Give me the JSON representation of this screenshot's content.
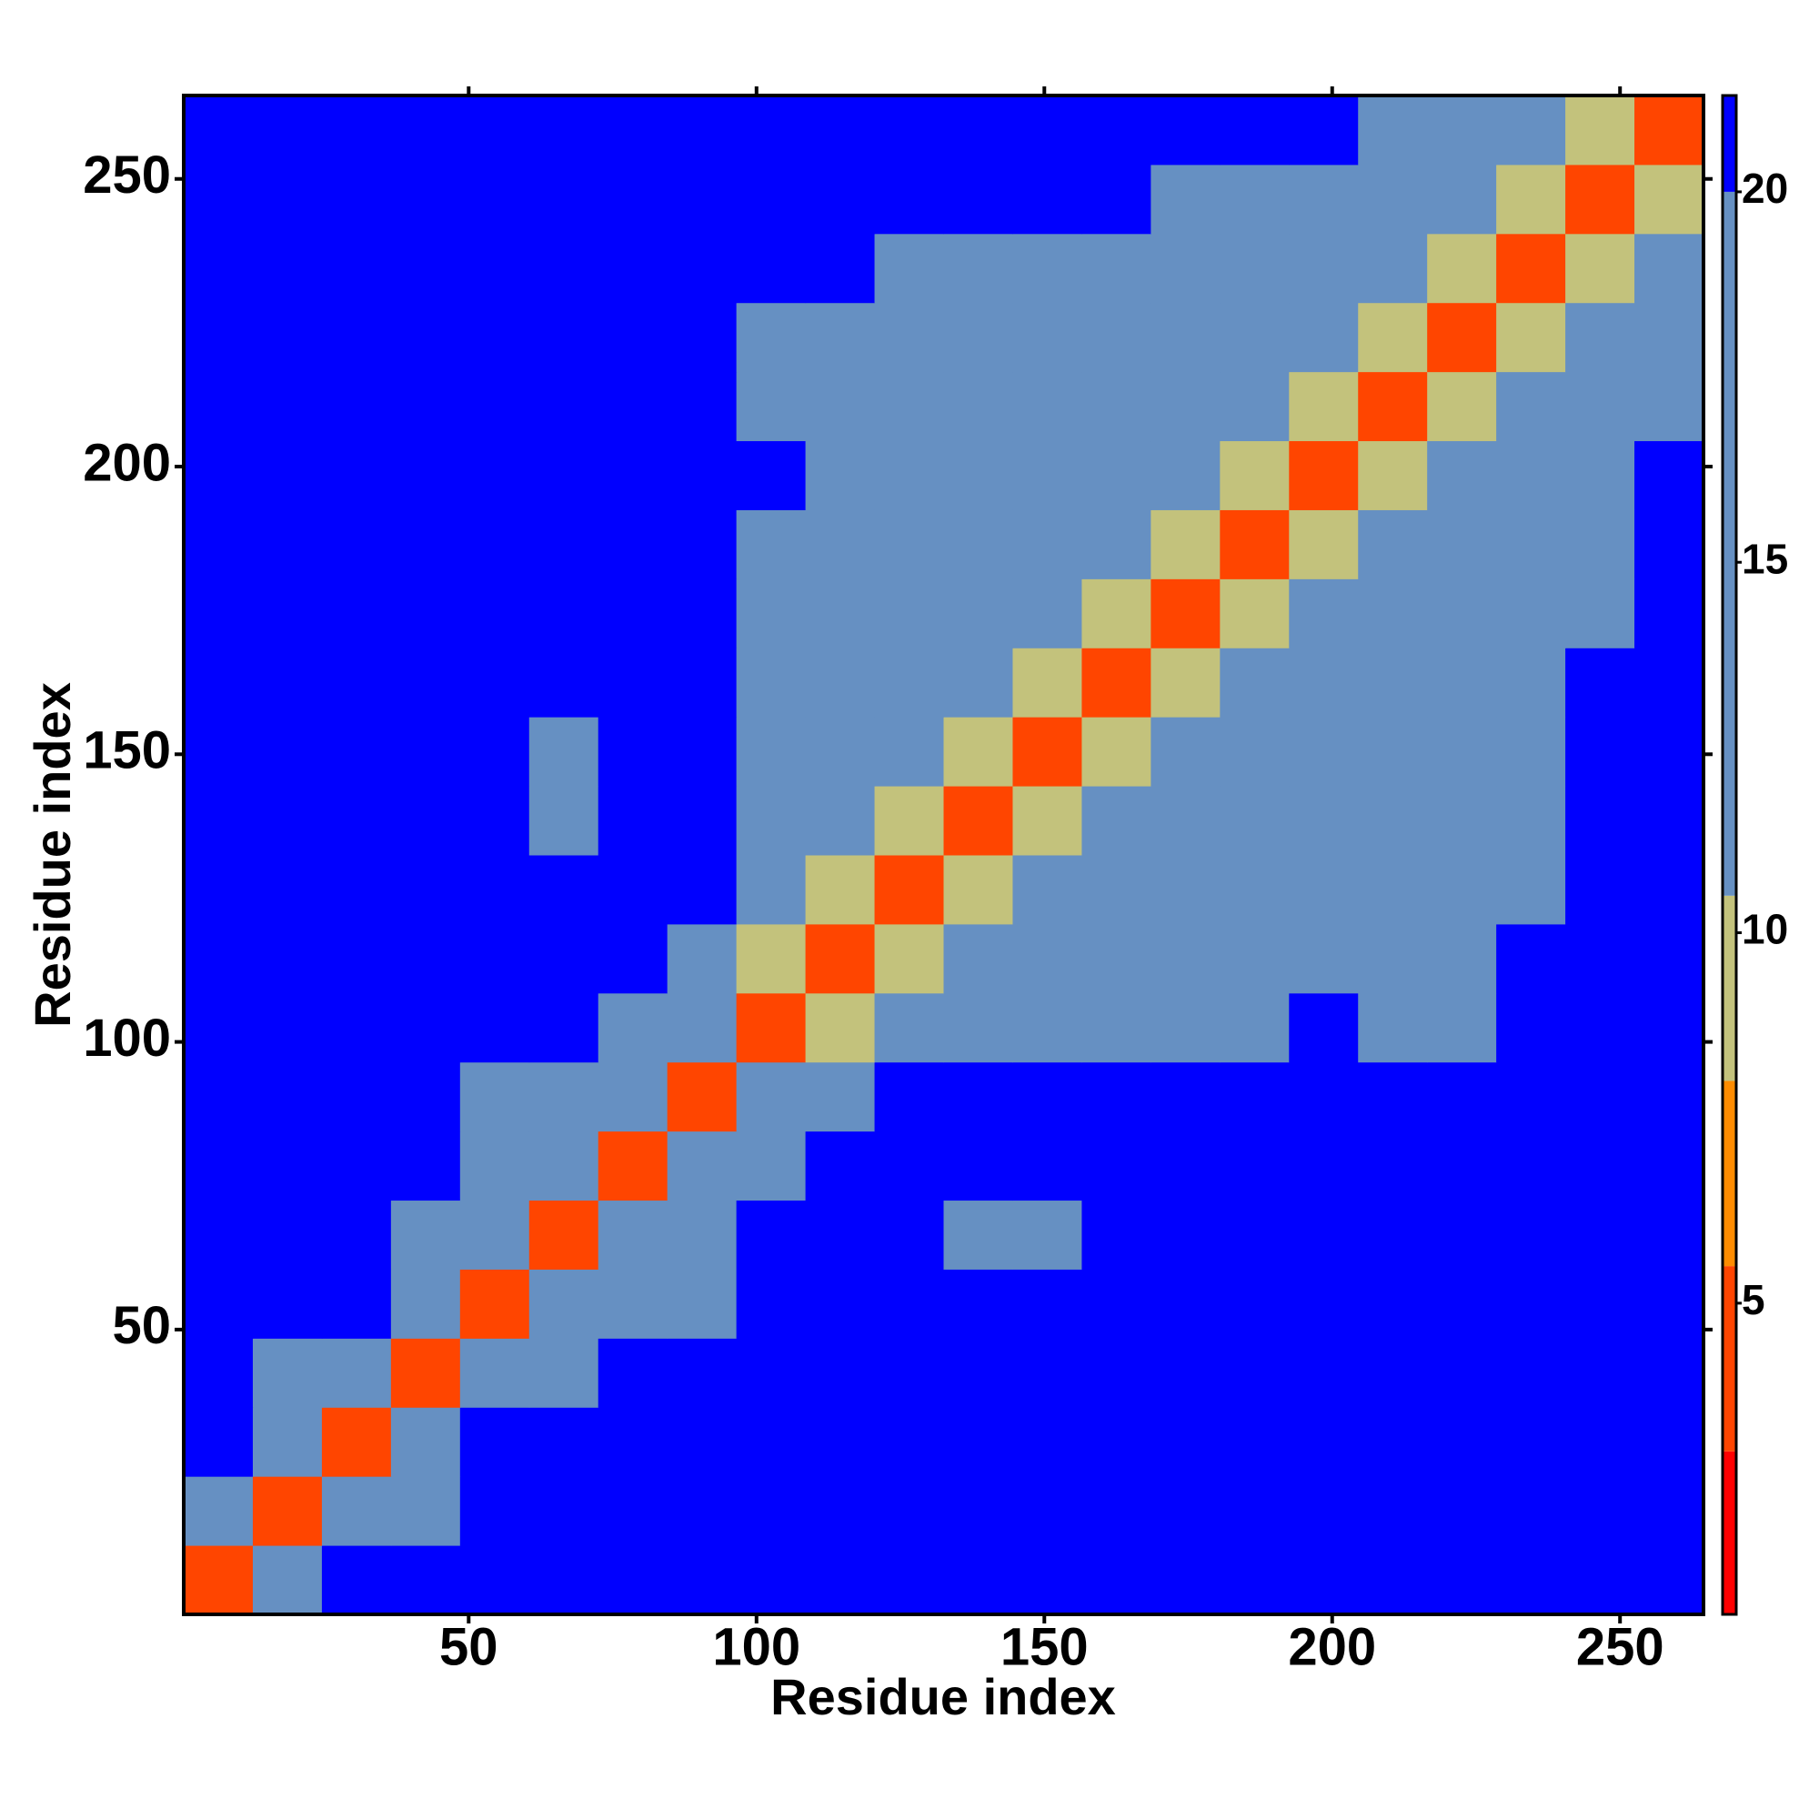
{
  "chart_data": {
    "type": "heatmap",
    "xlabel": "Residue index",
    "ylabel": "Residue index",
    "x": [
      6.5,
      18.5,
      30.5,
      42.5,
      54.5,
      66.5,
      78.5,
      90.5,
      102.5,
      114.5,
      126.5,
      138.5,
      150.5,
      162.5,
      174.5,
      186.5,
      198.5,
      210.5,
      222.5,
      234.5,
      246.5,
      258.5
    ],
    "y": [
      6.5,
      18.5,
      30.5,
      42.5,
      54.5,
      66.5,
      78.5,
      90.5,
      102.5,
      114.5,
      126.5,
      138.5,
      150.5,
      162.5,
      174.5,
      186.5,
      198.5,
      210.5,
      222.5,
      234.5,
      246.5,
      258.5
    ],
    "z": [
      [
        4,
        12,
        21,
        21,
        21,
        21,
        21,
        21,
        21,
        21,
        21,
        21,
        21,
        21,
        21,
        21,
        21,
        21,
        21,
        21,
        21,
        21
      ],
      [
        12,
        4,
        12,
        16,
        21,
        21,
        21,
        21,
        21,
        21,
        21,
        21,
        21,
        21,
        21,
        21,
        21,
        21,
        21,
        21,
        21,
        21
      ],
      [
        21,
        12,
        4,
        12,
        21,
        21,
        21,
        21,
        21,
        21,
        21,
        21,
        21,
        21,
        21,
        21,
        21,
        21,
        21,
        21,
        21,
        21
      ],
      [
        21,
        16,
        12,
        4,
        12,
        16,
        21,
        21,
        21,
        21,
        21,
        21,
        21,
        21,
        21,
        21,
        21,
        21,
        21,
        21,
        21,
        21
      ],
      [
        21,
        21,
        21,
        12,
        4,
        12,
        12,
        11,
        21,
        21,
        21,
        21,
        21,
        21,
        21,
        21,
        21,
        21,
        21,
        21,
        21,
        21
      ],
      [
        21,
        21,
        21,
        16,
        12,
        4,
        12,
        12,
        21,
        21,
        21,
        19,
        19,
        21,
        21,
        21,
        21,
        21,
        21,
        21,
        21,
        21
      ],
      [
        21,
        21,
        21,
        21,
        12,
        12,
        4,
        12,
        16,
        21,
        21,
        21,
        21,
        21,
        21,
        21,
        21,
        21,
        21,
        21,
        21,
        21
      ],
      [
        21,
        21,
        21,
        21,
        11,
        12,
        12,
        4,
        12,
        14,
        21,
        21,
        21,
        21,
        21,
        21,
        21,
        21,
        21,
        21,
        21,
        21
      ],
      [
        21,
        21,
        21,
        21,
        21,
        21,
        16,
        12,
        4,
        10,
        14,
        16,
        16,
        16,
        16,
        18,
        21,
        19,
        19,
        21,
        21,
        21
      ],
      [
        21,
        21,
        21,
        21,
        21,
        21,
        21,
        14,
        10,
        4,
        10,
        14,
        13,
        16,
        16,
        16,
        19,
        19,
        19,
        21,
        21,
        21
      ],
      [
        21,
        21,
        21,
        21,
        21,
        21,
        21,
        21,
        14,
        10,
        4,
        10,
        12,
        13,
        16,
        16,
        18,
        19,
        18,
        19,
        21,
        21
      ],
      [
        21,
        21,
        21,
        21,
        21,
        19,
        21,
        21,
        16,
        14,
        10,
        4,
        10,
        12,
        16,
        16,
        18,
        19,
        18,
        19,
        21,
        21
      ],
      [
        21,
        21,
        21,
        21,
        21,
        19,
        21,
        21,
        16,
        13,
        12,
        10,
        4,
        10,
        14,
        16,
        16,
        18,
        18,
        19,
        21,
        21
      ],
      [
        21,
        21,
        21,
        21,
        21,
        21,
        21,
        21,
        16,
        16,
        13,
        12,
        10,
        4,
        10,
        14,
        16,
        18,
        16,
        18,
        21,
        21
      ],
      [
        21,
        21,
        21,
        21,
        21,
        21,
        21,
        21,
        16,
        16,
        16,
        16,
        14,
        10,
        4,
        10,
        14,
        16,
        16,
        16,
        19,
        21
      ],
      [
        21,
        21,
        21,
        21,
        21,
        21,
        21,
        21,
        18,
        16,
        16,
        16,
        16,
        14,
        10,
        4,
        10,
        14,
        16,
        16,
        16,
        21
      ],
      [
        21,
        21,
        21,
        21,
        21,
        21,
        21,
        21,
        21,
        19,
        18,
        18,
        16,
        16,
        14,
        10,
        4,
        10,
        13,
        15,
        16,
        21
      ],
      [
        21,
        21,
        21,
        21,
        21,
        21,
        21,
        21,
        19,
        19,
        19,
        19,
        18,
        18,
        16,
        14,
        10,
        4,
        10,
        12,
        14,
        16
      ],
      [
        21,
        21,
        21,
        21,
        21,
        21,
        21,
        21,
        19,
        19,
        18,
        18,
        18,
        16,
        16,
        16,
        13,
        10,
        4,
        10,
        13,
        16
      ],
      [
        21,
        21,
        21,
        21,
        21,
        21,
        21,
        21,
        21,
        21,
        19,
        19,
        19,
        18,
        16,
        16,
        15,
        12,
        10,
        4,
        10,
        16
      ],
      [
        21,
        21,
        21,
        21,
        21,
        21,
        21,
        21,
        21,
        21,
        21,
        21,
        21,
        21,
        19,
        16,
        16,
        14,
        13,
        10,
        4,
        10
      ],
      [
        21,
        21,
        21,
        21,
        21,
        21,
        21,
        21,
        21,
        21,
        21,
        21,
        21,
        21,
        21,
        21,
        21,
        16,
        16,
        16,
        10,
        4
      ]
    ],
    "xlim": [
      0.5,
      264.5
    ],
    "ylim": [
      0.5,
      264.5
    ],
    "xticks": [
      50,
      100,
      150,
      200,
      250
    ],
    "yticks": [
      50,
      100,
      150,
      200,
      250
    ],
    "colorscale": [
      [
        0.8,
        "#ff0000"
      ],
      [
        3,
        "#ff4500"
      ],
      [
        5.5,
        "#ff8c00"
      ],
      [
        8,
        "#c3c27c"
      ],
      [
        10.5,
        "#6690c2"
      ],
      [
        20,
        "#0000ff"
      ]
    ],
    "clim": [
      0.8,
      21.3
    ],
    "cticks": [
      5,
      10,
      15,
      20
    ]
  }
}
